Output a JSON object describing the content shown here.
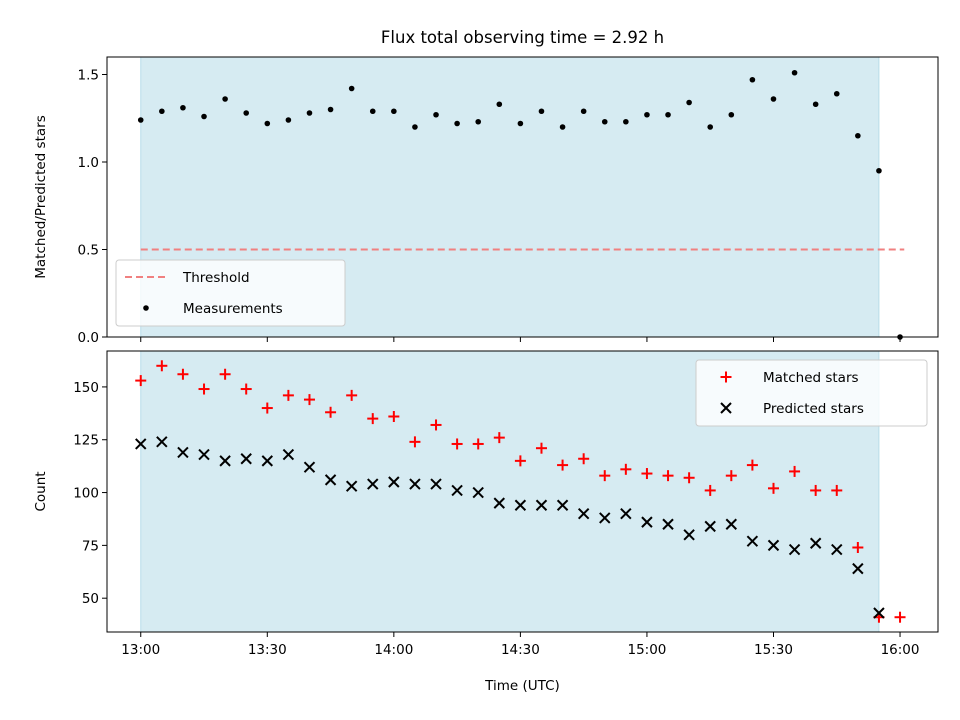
{
  "chart_data": [
    {
      "type": "scatter",
      "title": "Flux total observing time = 2.92 h",
      "xlabel": "",
      "ylabel": "Matched/Predicted stars",
      "xlim": [
        "12:52",
        "16:09"
      ],
      "ylim": [
        0,
        1.6
      ],
      "yticks": [
        0.0,
        0.5,
        1.0,
        1.5
      ],
      "ytick_labels": [
        "0.0",
        "0.5",
        "1.0",
        "1.5"
      ],
      "shaded_span": [
        "13:00",
        "15:55"
      ],
      "shaded_color": "#add8e6",
      "legend_position": "lower-left",
      "series": [
        {
          "name": "Threshold",
          "kind": "dashed-line",
          "color": "#f08080",
          "x": [
            "13:00",
            "16:01"
          ],
          "y": [
            0.5,
            0.5
          ]
        },
        {
          "name": "Measurements",
          "kind": "points",
          "color": "#000000",
          "x": [
            "13:00",
            "13:05",
            "13:10",
            "13:15",
            "13:20",
            "13:25",
            "13:30",
            "13:35",
            "13:40",
            "13:45",
            "13:50",
            "13:55",
            "14:00",
            "14:05",
            "14:10",
            "14:15",
            "14:20",
            "14:25",
            "14:30",
            "14:35",
            "14:40",
            "14:45",
            "14:50",
            "14:55",
            "15:00",
            "15:05",
            "15:10",
            "15:15",
            "15:20",
            "15:25",
            "15:30",
            "15:35",
            "15:40",
            "15:45",
            "15:50",
            "15:55",
            "16:00"
          ],
          "y": [
            1.24,
            1.29,
            1.31,
            1.26,
            1.36,
            1.28,
            1.22,
            1.24,
            1.28,
            1.3,
            1.42,
            1.29,
            1.29,
            1.2,
            1.27,
            1.22,
            1.23,
            1.33,
            1.22,
            1.29,
            1.2,
            1.29,
            1.23,
            1.23,
            1.27,
            1.27,
            1.34,
            1.2,
            1.27,
            1.47,
            1.36,
            1.51,
            1.33,
            1.39,
            1.15,
            0.95,
            0.0
          ]
        }
      ]
    },
    {
      "type": "scatter",
      "title": "",
      "xlabel": "Time (UTC)",
      "ylabel": "Count",
      "xlim": [
        "12:52",
        "16:09"
      ],
      "ylim": [
        34,
        167
      ],
      "yticks": [
        50,
        75,
        100,
        125,
        150
      ],
      "ytick_labels": [
        "50",
        "75",
        "100",
        "125",
        "150"
      ],
      "xticks": [
        "13:00",
        "13:30",
        "14:00",
        "14:30",
        "15:00",
        "15:30",
        "16:00"
      ],
      "xtick_labels": [
        "13:00",
        "13:30",
        "14:00",
        "14:30",
        "15:00",
        "15:30",
        "16:00"
      ],
      "shaded_span": [
        "13:00",
        "15:55"
      ],
      "shaded_color": "#add8e6",
      "legend_position": "top-right",
      "series": [
        {
          "name": "Matched stars",
          "marker": "plus",
          "color": "#ff0000",
          "x": [
            "13:00",
            "13:05",
            "13:10",
            "13:15",
            "13:20",
            "13:25",
            "13:30",
            "13:35",
            "13:40",
            "13:45",
            "13:50",
            "13:55",
            "14:00",
            "14:05",
            "14:10",
            "14:15",
            "14:20",
            "14:25",
            "14:30",
            "14:35",
            "14:40",
            "14:45",
            "14:50",
            "14:55",
            "15:00",
            "15:05",
            "15:10",
            "15:15",
            "15:20",
            "15:25",
            "15:30",
            "15:35",
            "15:40",
            "15:45",
            "15:50",
            "15:55",
            "16:00"
          ],
          "y": [
            153,
            160,
            156,
            149,
            156,
            149,
            140,
            146,
            144,
            138,
            146,
            135,
            136,
            124,
            132,
            123,
            123,
            126,
            115,
            121,
            113,
            116,
            108,
            111,
            109,
            108,
            107,
            101,
            108,
            113,
            102,
            110,
            101,
            101,
            74,
            41,
            41
          ]
        },
        {
          "name": "Predicted stars",
          "marker": "x",
          "color": "#000000",
          "x": [
            "13:00",
            "13:05",
            "13:10",
            "13:15",
            "13:20",
            "13:25",
            "13:30",
            "13:35",
            "13:40",
            "13:45",
            "13:50",
            "13:55",
            "14:00",
            "14:05",
            "14:10",
            "14:15",
            "14:20",
            "14:25",
            "14:30",
            "14:35",
            "14:40",
            "14:45",
            "14:50",
            "14:55",
            "15:00",
            "15:05",
            "15:10",
            "15:15",
            "15:20",
            "15:25",
            "15:30",
            "15:35",
            "15:40",
            "15:45",
            "15:50",
            "15:55"
          ],
          "y": [
            123,
            124,
            119,
            118,
            115,
            116,
            115,
            118,
            112,
            106,
            103,
            104,
            105,
            104,
            104,
            101,
            100,
            95,
            94,
            94,
            94,
            90,
            88,
            90,
            86,
            85,
            80,
            84,
            85,
            77,
            75,
            73,
            76,
            73,
            64,
            43
          ]
        }
      ]
    }
  ]
}
